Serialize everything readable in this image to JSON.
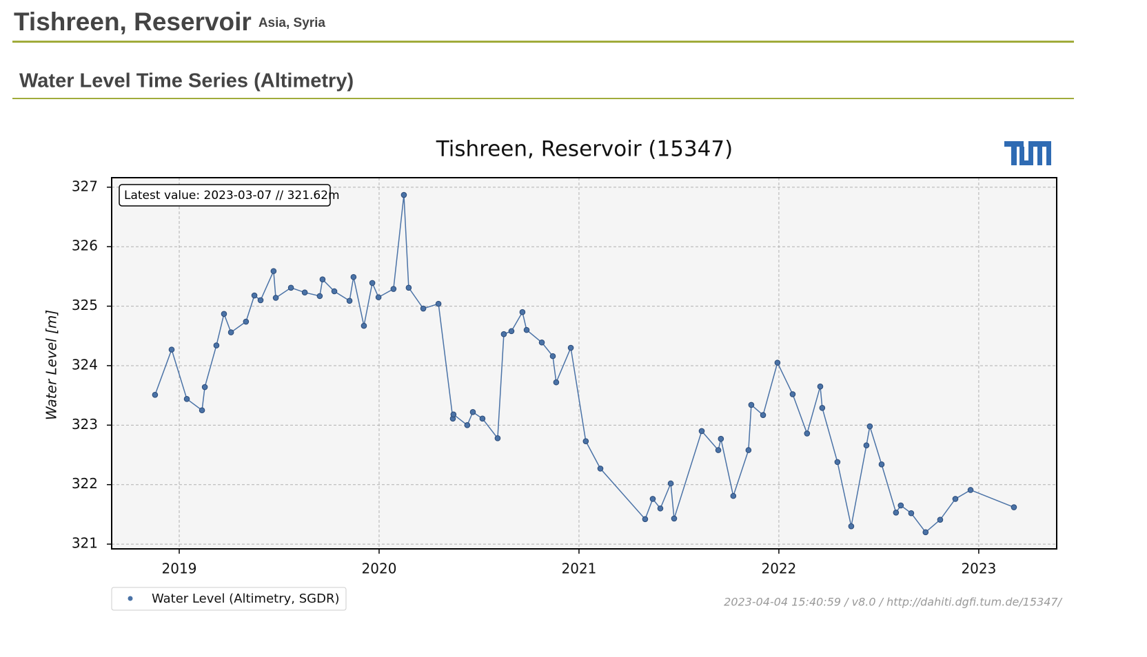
{
  "header": {
    "title": "Tishreen, Reservoir",
    "subtitle": "Asia, Syria",
    "section_title": "Water Level Time Series (Altimetry)"
  },
  "chart_data": {
    "type": "line",
    "title": "Tishreen, Reservoir (15347)",
    "annotation": "Latest value: 2023-03-07 // 321.62m",
    "y_label": "Water Level [m]",
    "x": [
      2018.879,
      2018.962,
      2019.038,
      2019.114,
      2019.128,
      2019.186,
      2019.224,
      2019.259,
      2019.334,
      2019.376,
      2019.407,
      2019.472,
      2019.483,
      2019.559,
      2019.628,
      2019.703,
      2019.717,
      2019.776,
      2019.852,
      2019.872,
      2019.924,
      2019.966,
      2019.997,
      2020.072,
      2020.124,
      2020.148,
      2020.221,
      2020.297,
      2020.369,
      2020.372,
      2020.441,
      2020.469,
      2020.517,
      2020.593,
      2020.624,
      2020.662,
      2020.717,
      2020.738,
      2020.814,
      2020.869,
      2020.886,
      2020.959,
      2021.034,
      2021.107,
      2021.331,
      2021.369,
      2021.407,
      2021.459,
      2021.476,
      2021.614,
      2021.697,
      2021.71,
      2021.772,
      2021.848,
      2021.862,
      2021.921,
      2021.993,
      2022.069,
      2022.141,
      2022.207,
      2022.217,
      2022.293,
      2022.362,
      2022.438,
      2022.455,
      2022.514,
      2022.586,
      2022.61,
      2022.662,
      2022.734,
      2022.807,
      2022.883,
      2022.959,
      2023.176
    ],
    "series": [
      {
        "name": "Water Level (Altimetry, SGDR)",
        "color": "#4a72a6",
        "values": [
          323.51,
          324.27,
          323.44,
          323.25,
          323.64,
          324.34,
          324.87,
          324.56,
          324.74,
          325.18,
          325.1,
          325.59,
          325.14,
          325.31,
          325.23,
          325.17,
          325.45,
          325.25,
          325.09,
          325.49,
          324.67,
          325.39,
          325.15,
          325.29,
          326.87,
          325.31,
          324.96,
          325.04,
          323.11,
          323.18,
          323.0,
          323.22,
          323.11,
          322.78,
          324.53,
          324.58,
          324.9,
          324.6,
          324.39,
          324.16,
          323.72,
          324.3,
          322.73,
          322.27,
          321.42,
          321.76,
          321.6,
          322.02,
          321.43,
          322.9,
          322.58,
          322.77,
          321.81,
          322.58,
          323.34,
          323.17,
          324.05,
          323.52,
          322.86,
          323.65,
          323.29,
          322.38,
          321.3,
          322.66,
          322.98,
          322.34,
          321.53,
          321.65,
          321.52,
          321.2,
          321.41,
          321.76,
          321.91,
          321.62
        ]
      }
    ],
    "xlim": [
      2018.662,
      2023.39
    ],
    "ylim": [
      320.92,
      327.16
    ],
    "xticks": [
      2019,
      2020,
      2021,
      2022,
      2023
    ],
    "yticks": [
      321,
      322,
      323,
      324,
      325,
      326,
      327
    ],
    "grid": true
  },
  "footer": "2023-04-04 15:40:59 / v8.0 / http://dahiti.dgfi.tum.de/15347/"
}
